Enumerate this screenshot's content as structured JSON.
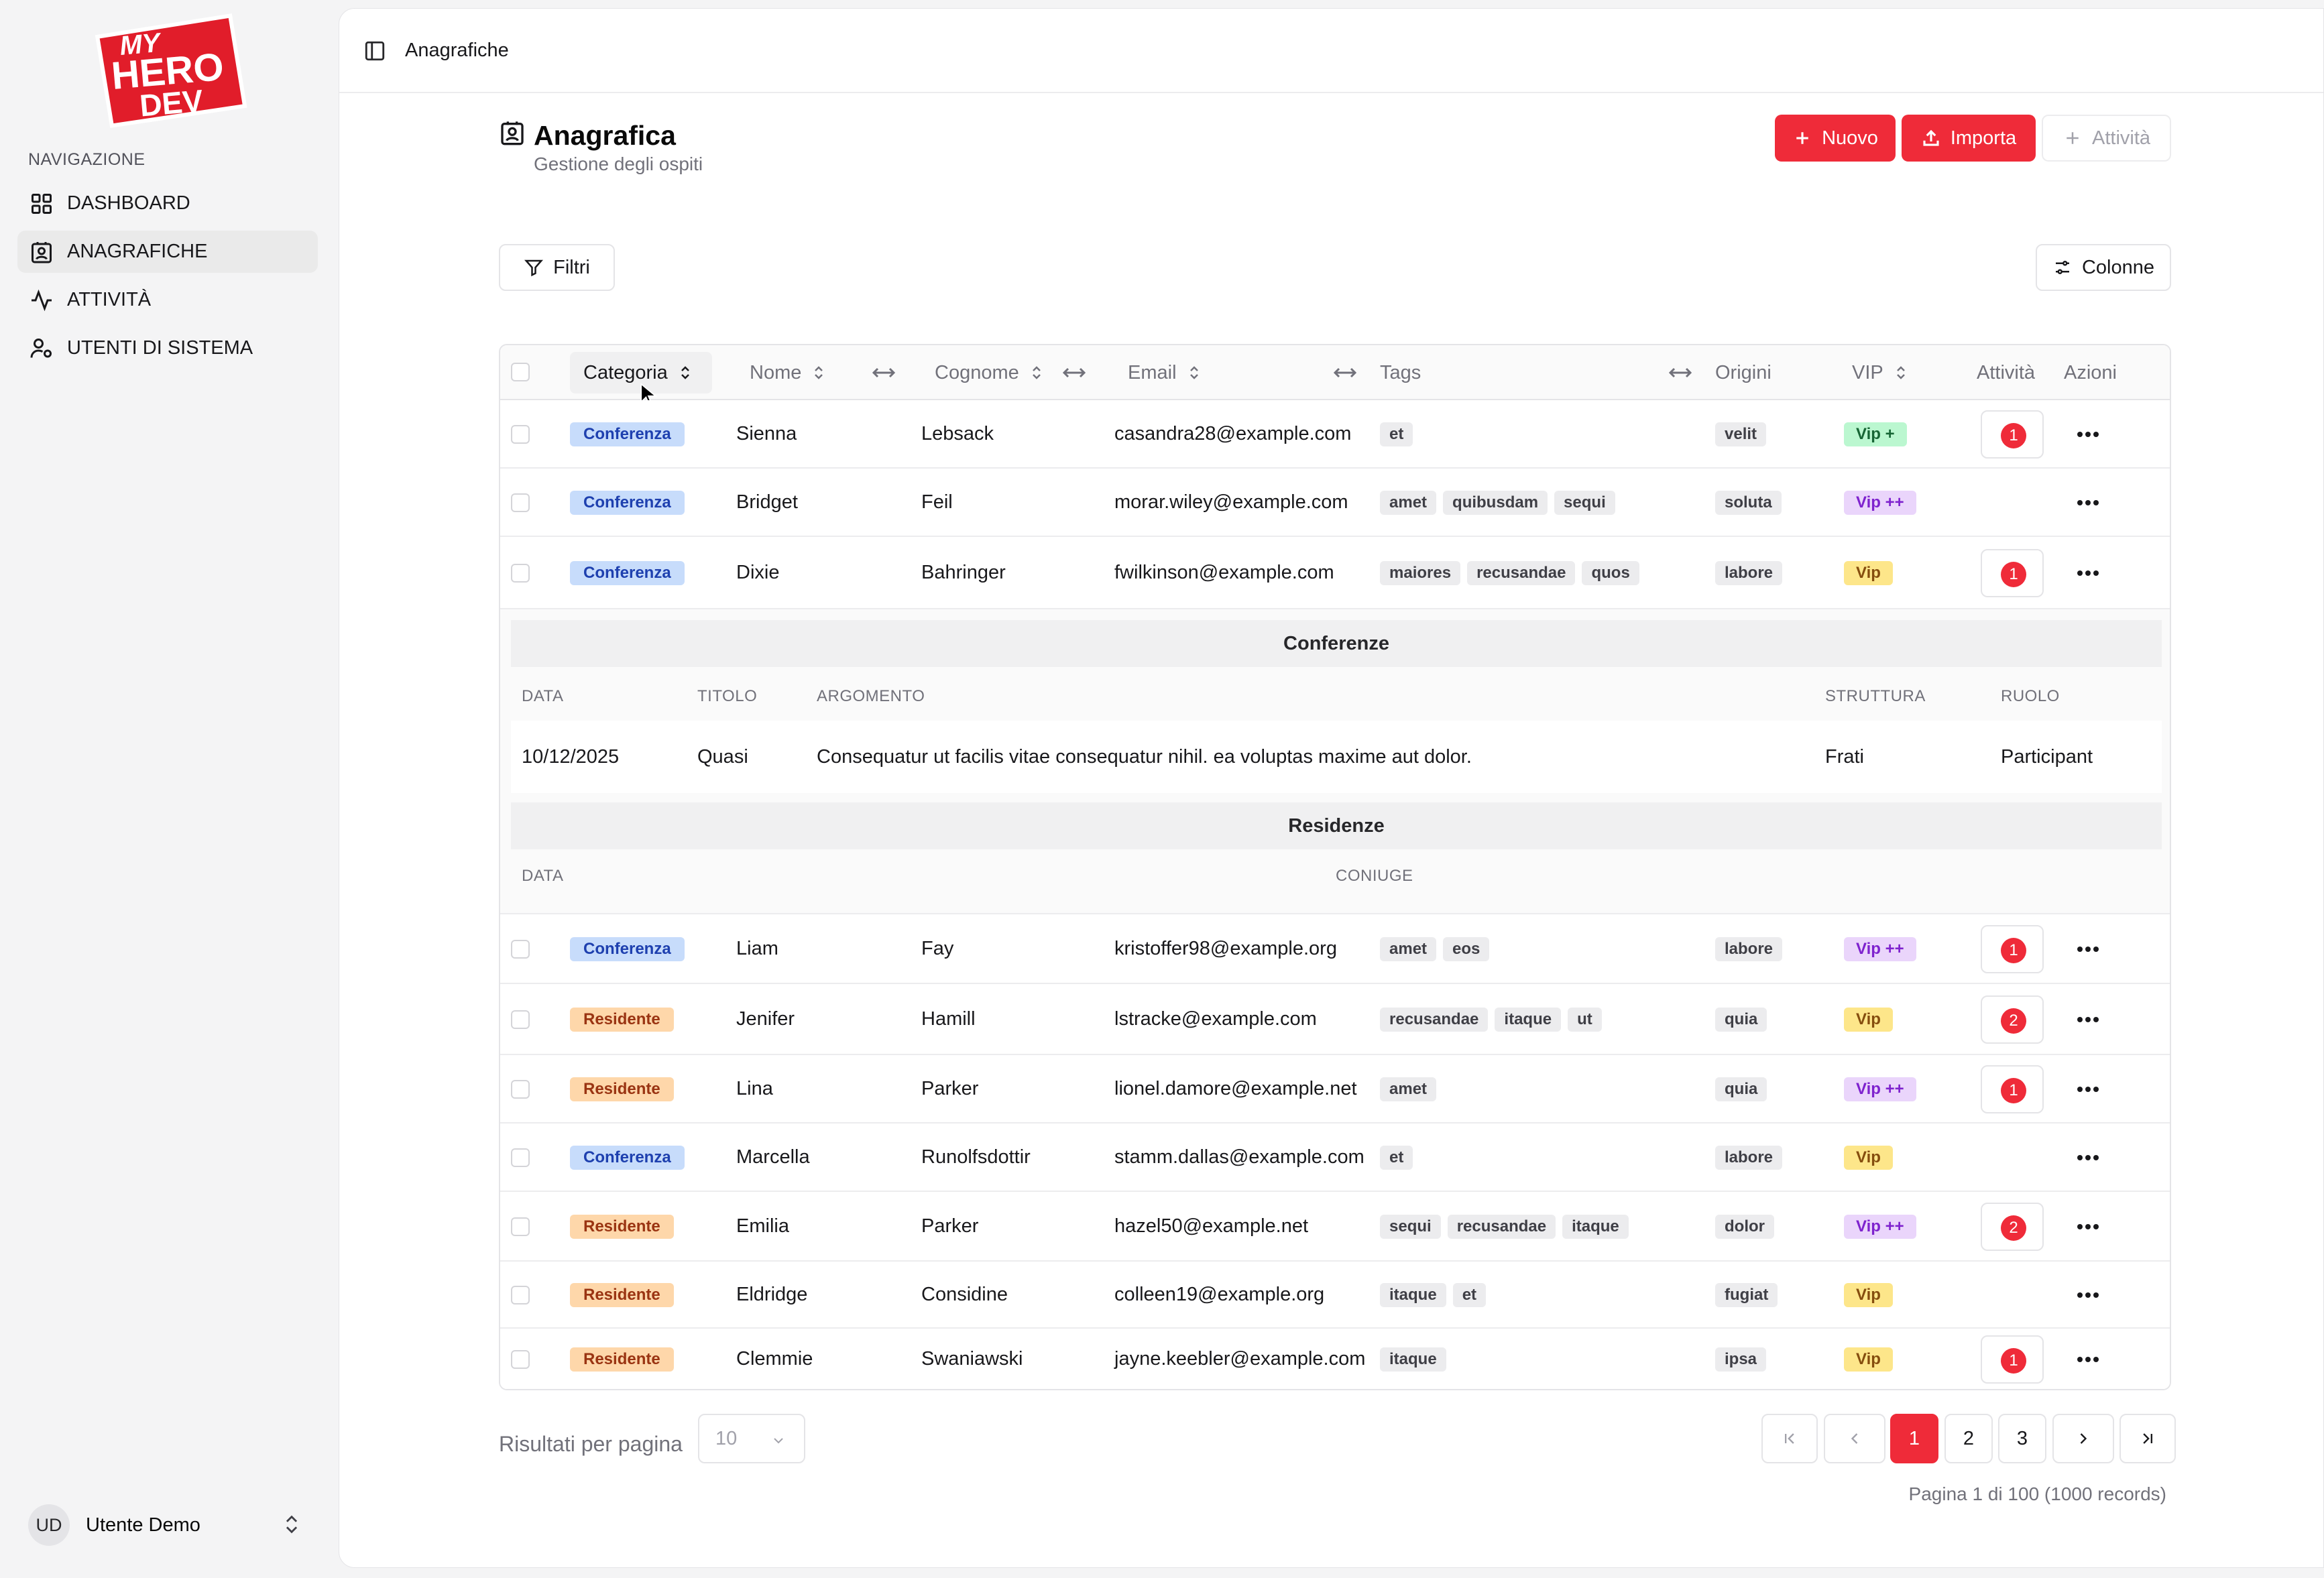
{
  "sidebar": {
    "logo": {
      "line1": "MY",
      "line2": "HERO",
      "line3": "DEV"
    },
    "section_label": "NAVIGAZIONE",
    "items": [
      {
        "label": "DASHBOARD",
        "icon": "dashboard-icon",
        "active": false
      },
      {
        "label": "ANAGRAFICHE",
        "icon": "contact-icon",
        "active": true
      },
      {
        "label": "ATTIVITÀ",
        "icon": "activity-icon",
        "active": false
      },
      {
        "label": "UTENTI DI SISTEMA",
        "icon": "user-settings-icon",
        "active": false
      }
    ],
    "user": {
      "initials": "UD",
      "name": "Utente Demo"
    }
  },
  "topbar": {
    "breadcrumb": "Anagrafiche"
  },
  "header": {
    "title": "Anagrafica",
    "subtitle": "Gestione degli ospiti",
    "new_label": "Nuovo",
    "import_label": "Importa",
    "activity_label": "Attività"
  },
  "toolbar": {
    "filters_label": "Filtri",
    "columns_label": "Colonne"
  },
  "table": {
    "columns": {
      "category": "Categoria",
      "name": "Nome",
      "surname": "Cognome",
      "email": "Email",
      "tags": "Tags",
      "origins": "Origini",
      "vip": "VIP",
      "activity": "Attività",
      "actions": "Azioni"
    },
    "rows": [
      {
        "category": "Conferenza",
        "name": "Sienna",
        "surname": "Lebsack",
        "email": "casandra28@example.com",
        "tags": [
          "et"
        ],
        "origin": "velit",
        "vip": "Vip +",
        "activity": "1"
      },
      {
        "category": "Conferenza",
        "name": "Bridget",
        "surname": "Feil",
        "email": "morar.wiley@example.com",
        "tags": [
          "amet",
          "quibusdam",
          "sequi"
        ],
        "origin": "soluta",
        "vip": "Vip ++",
        "activity": ""
      },
      {
        "category": "Conferenza",
        "name": "Dixie",
        "surname": "Bahringer",
        "email": "fwilkinson@example.com",
        "tags": [
          "maiores",
          "recusandae",
          "quos"
        ],
        "origin": "labore",
        "vip": "Vip",
        "activity": "1"
      },
      {
        "category": "Conferenza",
        "name": "Liam",
        "surname": "Fay",
        "email": "kristoffer98@example.org",
        "tags": [
          "amet",
          "eos"
        ],
        "origin": "labore",
        "vip": "Vip ++",
        "activity": "1"
      },
      {
        "category": "Residente",
        "name": "Jenifer",
        "surname": "Hamill",
        "email": "lstracke@example.com",
        "tags": [
          "recusandae",
          "itaque",
          "ut"
        ],
        "origin": "quia",
        "vip": "Vip",
        "activity": "2"
      },
      {
        "category": "Residente",
        "name": "Lina",
        "surname": "Parker",
        "email": "lionel.damore@example.net",
        "tags": [
          "amet"
        ],
        "origin": "quia",
        "vip": "Vip ++",
        "activity": "1"
      },
      {
        "category": "Conferenza",
        "name": "Marcella",
        "surname": "Runolfsdottir",
        "email": "stamm.dallas@example.com",
        "tags": [
          "et"
        ],
        "origin": "labore",
        "vip": "Vip",
        "activity": ""
      },
      {
        "category": "Residente",
        "name": "Emilia",
        "surname": "Parker",
        "email": "hazel50@example.net",
        "tags": [
          "sequi",
          "recusandae",
          "itaque"
        ],
        "origin": "dolor",
        "vip": "Vip ++",
        "activity": "2"
      },
      {
        "category": "Residente",
        "name": "Eldridge",
        "surname": "Considine",
        "email": "colleen19@example.org",
        "tags": [
          "itaque",
          "et"
        ],
        "origin": "fugiat",
        "vip": "Vip",
        "activity": ""
      },
      {
        "category": "Residente",
        "name": "Clemmie",
        "surname": "Swaniawski",
        "email": "jayne.keebler@example.com",
        "tags": [
          "itaque"
        ],
        "origin": "ipsa",
        "vip": "Vip",
        "activity": "1"
      }
    ],
    "expanded": {
      "conferences": {
        "title": "Conferenze",
        "headers": {
          "date": "DATA",
          "title": "TITOLO",
          "topic": "ARGOMENTO",
          "structure": "STRUTTURA",
          "role": "RUOLO"
        },
        "row": {
          "date": "10/12/2025",
          "title": "Quasi",
          "topic": "Consequatur ut facilis vitae consequatur nihil. ea voluptas maxime aut dolor.",
          "structure": "Frati",
          "role": "Participant"
        }
      },
      "residences": {
        "title": "Residenze",
        "headers": {
          "date": "DATA",
          "spouse": "CONIUGE"
        }
      }
    }
  },
  "pagination": {
    "per_page_label": "Risultati per pagina",
    "per_page_value": "10",
    "pages": [
      "1",
      "2",
      "3"
    ],
    "current": "1",
    "info": "Pagina 1 di 100 (1000 records)"
  },
  "colors": {
    "accent": "#ef2b39",
    "conference": "#c7dcfb",
    "resident": "#fed7aa"
  }
}
